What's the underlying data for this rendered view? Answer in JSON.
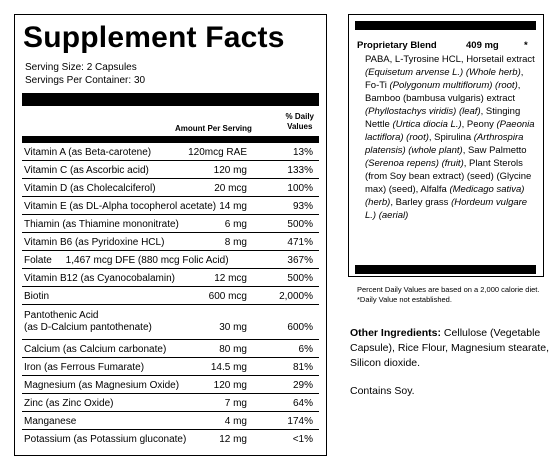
{
  "title": "Supplement Facts",
  "serving_size": "Serving Size: 2 Capsules",
  "servings_per_container": "Servings Per Container: 30",
  "header": {
    "amount": "Amount Per Serving",
    "dv_line1": "% Daily",
    "dv_line2": "Values"
  },
  "rows": [
    {
      "name": "Vitamin A (as Beta-carotene)",
      "amount": "120mcg RAE",
      "dv": "13%"
    },
    {
      "name": "Vitamin C (as Ascorbic acid)",
      "amount": "120 mg",
      "dv": "133%"
    },
    {
      "name": "Vitamin D (as Cholecalciferol)",
      "amount": "20 mcg",
      "dv": "100%"
    },
    {
      "name": "Vitamin E (as DL-Alpha tocopherol acetate)",
      "amount": "14 mg",
      "dv": "93%"
    },
    {
      "name": "Thiamin (as Thiamine mononitrate)",
      "amount": "6 mg",
      "dv": "500%"
    },
    {
      "name": "Vitamin B6 (as Pyridoxine HCL)",
      "amount": "8 mg",
      "dv": "471%"
    },
    {
      "name": "Folate     1,467 mcg DFE (880 mcg Folic Acid)",
      "amount": "",
      "dv": "367%"
    },
    {
      "name": "Vitamin B12 (as Cyanocobalamin)",
      "amount": "12 mcg",
      "dv": "500%"
    },
    {
      "name": "Biotin",
      "amount": "600 mcg",
      "dv": "2,000%"
    },
    {
      "name": "Pantothenic Acid",
      "name2": "(as D-Calcium pantothenate)",
      "amount": "30 mg",
      "dv": "600%"
    },
    {
      "name": "Calcium (as Calcium carbonate)",
      "amount": "80 mg",
      "dv": "6%"
    },
    {
      "name": "Iron (as Ferrous Fumarate)",
      "amount": "14.5 mg",
      "dv": "81%"
    },
    {
      "name": "Magnesium (as Magnesium Oxide)",
      "amount": "120 mg",
      "dv": "29%"
    },
    {
      "name": "Zinc (as Zinc Oxide)",
      "amount": "7 mg",
      "dv": "64%"
    },
    {
      "name": "Manganese",
      "amount": "4 mg",
      "dv": "174%"
    },
    {
      "name": "Potassium (as Potassium gluconate)",
      "amount": "12 mg",
      "dv": "<1%"
    }
  ],
  "blend": {
    "label": "Proprietary Blend",
    "amount": "409 mg",
    "asterisk": "*",
    "segments": [
      {
        "t": "PABA, L-Tyrosine HCL, Horsetail extract ",
        "i": false
      },
      {
        "t": "(Equisetum arvense L.) (Whole herb)",
        "i": true
      },
      {
        "t": ", Fo-Ti ",
        "i": false
      },
      {
        "t": "(Polygonum multiflorum) (root)",
        "i": true
      },
      {
        "t": ", Bamboo (bambusa vulgaris) extract ",
        "i": false
      },
      {
        "t": "(Phyllostachys viridis) (leaf)",
        "i": true
      },
      {
        "t": ", Stinging Nettle ",
        "i": false
      },
      {
        "t": "(Urtica diocia L.)",
        "i": true
      },
      {
        "t": ", Peony ",
        "i": false
      },
      {
        "t": "(Paeonia lactiflora) (root)",
        "i": true
      },
      {
        "t": ", Spirulina ",
        "i": false
      },
      {
        "t": "(Arthrospira platensis) (whole plant)",
        "i": true
      },
      {
        "t": ", Saw Palmetto ",
        "i": false
      },
      {
        "t": "(Serenoa repens) (fruit)",
        "i": true
      },
      {
        "t": ", Plant Sterols (from Soy bean extract) (seed) (Glycine max) (seed), Alfalfa ",
        "i": false
      },
      {
        "t": "(Medicago sativa) (herb)",
        "i": true
      },
      {
        "t": ", Barley grass ",
        "i": false
      },
      {
        "t": "(Hordeum vulgare L.) (aerial)",
        "i": true
      }
    ]
  },
  "footnote": "Percent Daily Values are based on a 2,000 calorie diet. *Daily Value not established.",
  "other_label": "Other Ingredients:",
  "other_text": " Cellulose (Vegetable Capsule), Rice Flour, Magnesium stearate, Silicon dioxide.",
  "contains": "Contains Soy."
}
